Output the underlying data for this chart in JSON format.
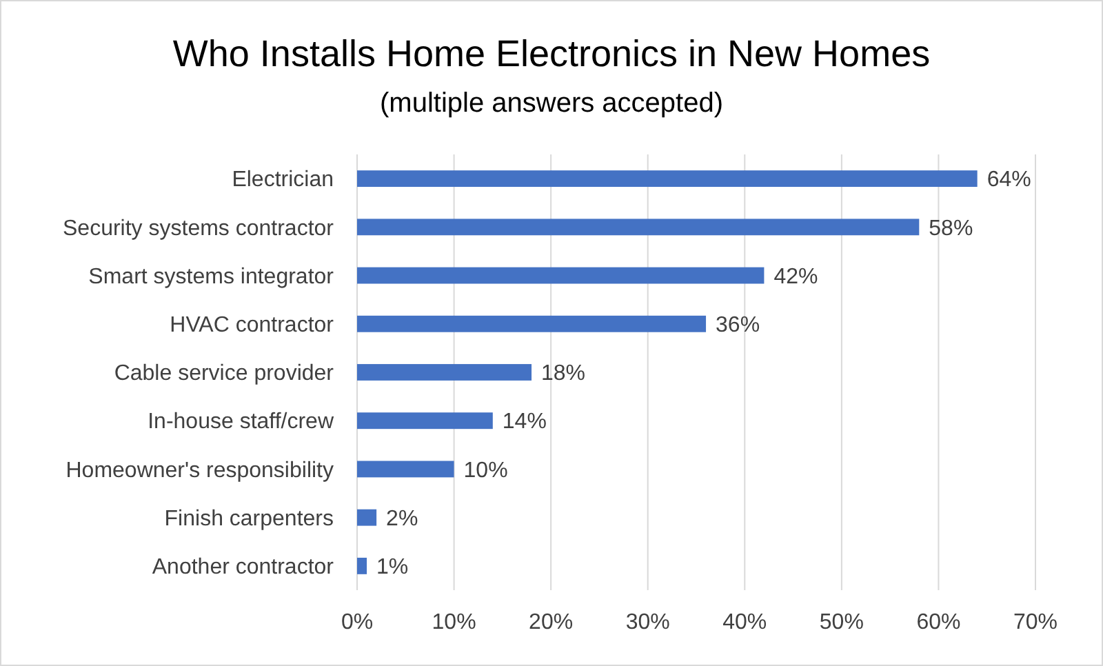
{
  "chart_data": {
    "type": "bar",
    "orientation": "horizontal",
    "title": "Who Installs Home Electronics in New Homes",
    "subtitle": "(multiple answers accepted)",
    "categories": [
      "Electrician",
      "Security systems contractor",
      "Smart systems integrator",
      "HVAC contractor",
      "Cable service provider",
      "In-house staff/crew",
      "Homeowner's responsibility",
      "Finish carpenters",
      "Another contractor"
    ],
    "values": [
      64,
      58,
      42,
      36,
      18,
      14,
      10,
      2,
      1
    ],
    "value_labels": [
      "64%",
      "58%",
      "42%",
      "36%",
      "18%",
      "14%",
      "10%",
      "2%",
      "1%"
    ],
    "color": "#4472c4",
    "xlim": [
      0,
      70
    ],
    "xticks": [
      {
        "value": 0,
        "label": "0%"
      },
      {
        "value": 10,
        "label": "10%"
      },
      {
        "value": 20,
        "label": "20%"
      },
      {
        "value": 30,
        "label": "30%"
      },
      {
        "value": 40,
        "label": "40%"
      },
      {
        "value": 50,
        "label": "50%"
      },
      {
        "value": 60,
        "label": "60%"
      },
      {
        "value": 70,
        "label": "70%"
      }
    ],
    "grid": "x"
  }
}
